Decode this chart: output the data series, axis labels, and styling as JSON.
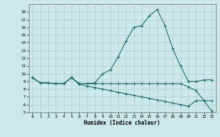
{
  "xlabel": "Humidex (Indice chaleur)",
  "background_color": "#cce8e8",
  "line_color": "#1a6b6b",
  "grid_color": "#aacccc",
  "xlim": [
    -0.5,
    23.5
  ],
  "ylim": [
    5,
    19
  ],
  "xticks": [
    0,
    1,
    2,
    3,
    4,
    5,
    6,
    7,
    8,
    9,
    10,
    11,
    12,
    13,
    14,
    15,
    16,
    17,
    18,
    19,
    20,
    21,
    22,
    23
  ],
  "yticks": [
    5,
    6,
    7,
    8,
    9,
    10,
    11,
    12,
    13,
    14,
    15,
    16,
    17,
    18
  ],
  "line1_x": [
    0,
    1,
    2,
    3,
    4,
    5,
    6,
    7,
    8,
    9,
    10,
    11,
    12,
    13,
    14,
    15,
    16,
    17,
    18,
    19,
    20,
    21,
    22,
    23
  ],
  "line1_y": [
    9.5,
    8.8,
    8.8,
    8.7,
    8.7,
    9.5,
    8.7,
    8.7,
    8.8,
    10.0,
    10.5,
    12.2,
    14.2,
    16.0,
    16.2,
    17.5,
    18.3,
    16.2,
    13.2,
    11.0,
    9.0,
    9.0,
    9.2,
    9.2
  ],
  "line2_x": [
    0,
    1,
    2,
    3,
    4,
    5,
    6,
    7,
    8,
    9,
    10,
    11,
    12,
    13,
    14,
    15,
    16,
    17,
    18,
    19,
    20,
    21,
    22,
    23
  ],
  "line2_y": [
    9.5,
    8.8,
    8.8,
    8.7,
    8.7,
    9.5,
    8.7,
    8.7,
    8.7,
    8.7,
    8.7,
    8.7,
    8.7,
    8.7,
    8.7,
    8.7,
    8.7,
    8.7,
    8.7,
    8.7,
    8.3,
    7.8,
    6.5,
    6.5
  ],
  "line3_x": [
    0,
    1,
    2,
    3,
    4,
    5,
    6,
    7,
    8,
    9,
    10,
    11,
    12,
    13,
    14,
    15,
    16,
    17,
    18,
    19,
    20,
    21,
    22,
    23
  ],
  "line3_y": [
    9.5,
    8.8,
    8.8,
    8.7,
    8.7,
    9.5,
    8.6,
    8.4,
    8.2,
    8.0,
    7.8,
    7.6,
    7.4,
    7.2,
    7.0,
    6.8,
    6.6,
    6.4,
    6.2,
    6.0,
    5.8,
    6.5,
    6.5,
    5.2
  ]
}
